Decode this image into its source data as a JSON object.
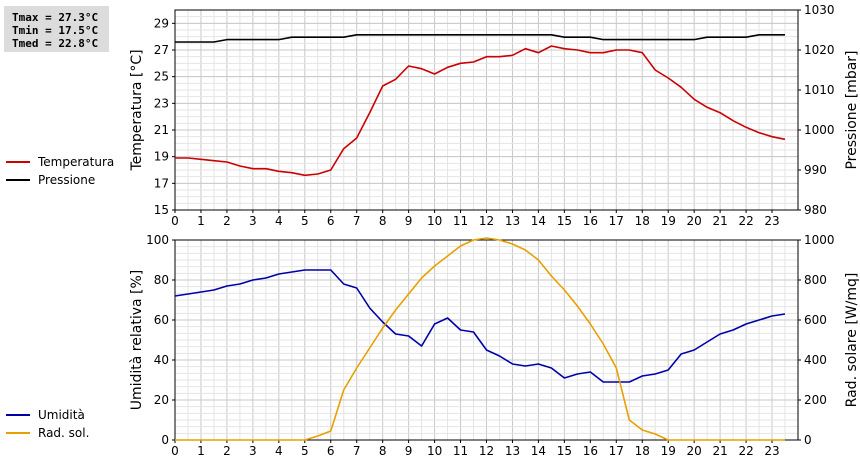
{
  "stats": {
    "tmax": "Tmax = 27.3°C",
    "tmin": "Tmin = 17.5°C",
    "tmed": "Tmed = 22.8°C"
  },
  "legend_top": [
    {
      "label": "Temperatura",
      "color": "#cc0000"
    },
    {
      "label": "Pressione",
      "color": "#000000"
    }
  ],
  "legend_bottom": [
    {
      "label": "Umidità",
      "color": "#0000aa"
    },
    {
      "label": "Rad. sol.",
      "color": "#e8a000"
    }
  ],
  "chart_data": [
    {
      "type": "line",
      "x": [
        0,
        0.5,
        1,
        1.5,
        2,
        2.5,
        3,
        3.5,
        4,
        4.5,
        5,
        5.5,
        6,
        6.5,
        7,
        7.5,
        8,
        8.5,
        9,
        9.5,
        10,
        10.5,
        11,
        11.5,
        12,
        12.5,
        13,
        13.5,
        14,
        14.5,
        15,
        15.5,
        16,
        16.5,
        17,
        17.5,
        18,
        18.5,
        19,
        19.5,
        20,
        20.5,
        21,
        21.5,
        22,
        22.5,
        23,
        23.5
      ],
      "xlim": [
        0,
        24
      ],
      "xticks": [
        "0",
        "1",
        "2",
        "3",
        "4",
        "5",
        "6",
        "7",
        "8",
        "9",
        "10",
        "11",
        "12",
        "13",
        "14",
        "15",
        "16",
        "17",
        "18",
        "19",
        "20",
        "21",
        "22",
        "23"
      ],
      "ylabel": "Temperatura [°C]",
      "ylim": [
        15,
        30
      ],
      "yticks": [
        "15",
        "17",
        "19",
        "21",
        "23",
        "25",
        "27",
        "29"
      ],
      "y2label": "Pressione [mbar]",
      "y2lim": [
        980,
        1030
      ],
      "y2ticks": [
        "980",
        "990",
        "1000",
        "1010",
        "1020",
        "1030"
      ],
      "grid": true,
      "series": [
        {
          "name": "Temperatura",
          "axis": "left",
          "color": "#cc0000",
          "values": [
            18.9,
            18.9,
            18.8,
            18.7,
            18.6,
            18.3,
            18.1,
            18.1,
            17.9,
            17.8,
            17.6,
            17.7,
            18.0,
            19.6,
            20.4,
            22.3,
            24.3,
            24.8,
            25.8,
            25.6,
            25.2,
            25.7,
            26.0,
            26.1,
            26.5,
            26.5,
            26.6,
            27.1,
            26.8,
            27.3,
            27.1,
            27.0,
            26.8,
            26.8,
            27.0,
            27.0,
            26.8,
            25.5,
            24.9,
            24.2,
            23.3,
            22.7,
            22.3,
            21.7,
            21.2,
            20.8,
            20.5,
            20.3
          ]
        },
        {
          "name": "Pressione",
          "axis": "right",
          "color": "#000000",
          "values": [
            1022,
            1022,
            1022,
            1022,
            1022.6,
            1022.6,
            1022.6,
            1022.6,
            1022.6,
            1023.2,
            1023.2,
            1023.2,
            1023.2,
            1023.2,
            1023.8,
            1023.8,
            1023.8,
            1023.8,
            1023.8,
            1023.8,
            1023.8,
            1023.8,
            1023.8,
            1023.8,
            1023.8,
            1023.8,
            1023.8,
            1023.8,
            1023.8,
            1023.8,
            1023.2,
            1023.2,
            1023.2,
            1022.6,
            1022.6,
            1022.6,
            1022.6,
            1022.6,
            1022.6,
            1022.6,
            1022.6,
            1023.2,
            1023.2,
            1023.2,
            1023.2,
            1023.8,
            1023.8,
            1023.8
          ]
        }
      ]
    },
    {
      "type": "line",
      "x": [
        0,
        0.5,
        1,
        1.5,
        2,
        2.5,
        3,
        3.5,
        4,
        4.5,
        5,
        5.5,
        6,
        6.5,
        7,
        7.5,
        8,
        8.5,
        9,
        9.5,
        10,
        10.5,
        11,
        11.5,
        12,
        12.5,
        13,
        13.5,
        14,
        14.5,
        15,
        15.5,
        16,
        16.5,
        17,
        17.5,
        18,
        18.5,
        19,
        19.5,
        20,
        20.5,
        21,
        21.5,
        22,
        22.5,
        23,
        23.5
      ],
      "xlim": [
        0,
        24
      ],
      "xticks": [
        "0",
        "1",
        "2",
        "3",
        "4",
        "5",
        "6",
        "7",
        "8",
        "9",
        "10",
        "11",
        "12",
        "13",
        "14",
        "15",
        "16",
        "17",
        "18",
        "19",
        "20",
        "21",
        "22",
        "23"
      ],
      "ylabel": "Umidità relativa [%]",
      "ylim": [
        0,
        100
      ],
      "yticks": [
        "0",
        "20",
        "40",
        "60",
        "80",
        "100"
      ],
      "y2label": "Rad. solare [W/mq]",
      "y2lim": [
        0,
        1000
      ],
      "y2ticks": [
        "0",
        "200",
        "400",
        "600",
        "800",
        "1000"
      ],
      "grid": true,
      "series": [
        {
          "name": "Umidità",
          "axis": "left",
          "color": "#0000aa",
          "values": [
            72,
            73,
            74,
            75,
            77,
            78,
            80,
            81,
            83,
            84,
            85,
            85,
            85,
            78,
            76,
            66,
            59,
            53,
            52,
            47,
            58,
            61,
            55,
            54,
            45,
            42,
            38,
            37,
            38,
            36,
            31,
            33,
            34,
            29,
            29,
            29,
            32,
            33,
            35,
            43,
            45,
            49,
            53,
            55,
            58,
            60,
            62,
            63
          ]
        },
        {
          "name": "Rad. sol.",
          "axis": "right",
          "color": "#e8a000",
          "values": [
            0,
            0,
            0,
            0,
            0,
            0,
            0,
            0,
            0,
            0,
            0,
            20,
            45,
            250,
            360,
            460,
            560,
            650,
            730,
            810,
            870,
            920,
            970,
            1000,
            1010,
            1000,
            980,
            950,
            900,
            820,
            750,
            670,
            580,
            480,
            360,
            100,
            50,
            30,
            0,
            0,
            0,
            0,
            0,
            0,
            0,
            0,
            0,
            0
          ]
        }
      ]
    }
  ]
}
